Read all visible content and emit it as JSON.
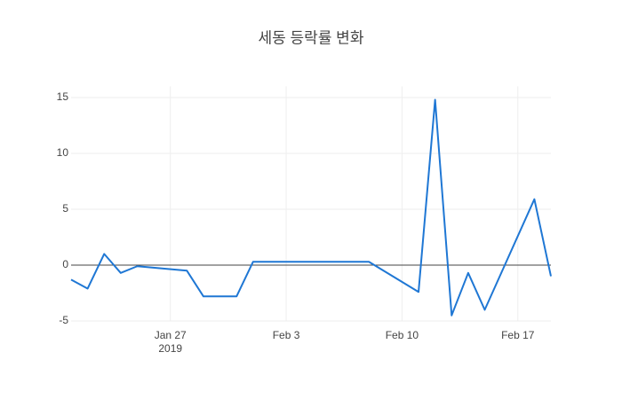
{
  "chart_data": {
    "type": "line",
    "title": "세동 등락률 변화",
    "x": [
      "2019-01-21",
      "2019-01-22",
      "2019-01-23",
      "2019-01-24",
      "2019-01-25",
      "2019-01-28",
      "2019-01-29",
      "2019-01-31",
      "2019-02-01",
      "2019-02-08",
      "2019-02-11",
      "2019-02-12",
      "2019-02-13",
      "2019-02-14",
      "2019-02-15",
      "2019-02-18",
      "2019-02-19"
    ],
    "series": [
      {
        "color": "#1f77d4",
        "values": [
          -1.3,
          -2.1,
          1.0,
          -0.7,
          -0.1,
          -0.5,
          -2.8,
          -2.8,
          0.3,
          0.3,
          -2.4,
          14.8,
          -4.5,
          -0.7,
          -4.0,
          5.9,
          -1.0
        ]
      }
    ],
    "xlim": [
      "2019-01-21",
      "2019-02-19"
    ],
    "xticks": [
      {
        "value": "2019-01-27",
        "label": "Jan 27"
      },
      {
        "value": "2019-02-03",
        "label": "Feb 3"
      },
      {
        "value": "2019-02-10",
        "label": "Feb 10"
      },
      {
        "value": "2019-02-17",
        "label": "Feb 17"
      }
    ],
    "x_tick_year": "2019",
    "ylim": [
      -5,
      16
    ],
    "yticks": [
      -5,
      0,
      5,
      10,
      15
    ],
    "grid": true,
    "zero_line": true
  }
}
